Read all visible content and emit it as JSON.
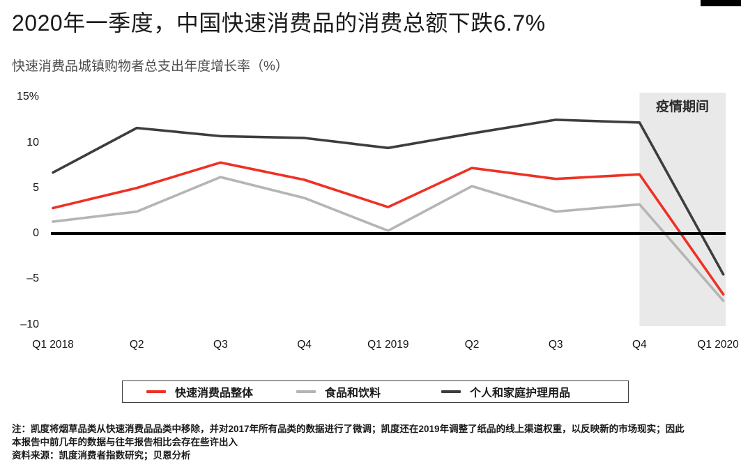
{
  "chart_data": {
    "type": "line",
    "title": "2020年一季度，中国快速消费品的消费总额下跌6.7%",
    "subtitle": "快速消费品城镇购物者总支出年度增长率（%）",
    "categories": [
      "Q1 2018",
      "Q2",
      "Q3",
      "Q4",
      "Q1 2019",
      "Q2",
      "Q3",
      "Q4",
      "Q1 2020"
    ],
    "series": [
      {
        "name": "快速消费品整体",
        "color": "#ee3124",
        "values": [
          2.8,
          5.0,
          7.8,
          5.9,
          2.9,
          7.2,
          6.0,
          6.5,
          -6.7
        ]
      },
      {
        "name": "食品和饮料",
        "color": "#b5b5b5",
        "values": [
          1.3,
          2.4,
          6.2,
          3.9,
          0.3,
          5.2,
          2.4,
          3.2,
          -7.4
        ]
      },
      {
        "name": "个人和家庭护理用品",
        "color": "#3d3d3d",
        "values": [
          6.7,
          11.6,
          10.7,
          10.5,
          9.4,
          11.0,
          12.5,
          12.2,
          -4.5
        ]
      }
    ],
    "ylim": [
      -10,
      15
    ],
    "yticks": [
      {
        "value": 15,
        "label": "15%"
      },
      {
        "value": 10,
        "label": "10"
      },
      {
        "value": 5,
        "label": "5"
      },
      {
        "value": 0,
        "label": "0"
      },
      {
        "value": -5,
        "label": "–5"
      },
      {
        "value": -10,
        "label": "–10"
      }
    ],
    "grid": false,
    "zero_line": true,
    "legend_position": "bottom",
    "annotation": {
      "label": "疫情期间",
      "from_category_index": 7,
      "to": "right-edge",
      "fill": "#e9e9e9"
    }
  },
  "notes": {
    "note_line1": "注：凯度将烟草品类从快速消费品品类中移除，并对2017年所有品类的数据进行了微调；凯度还在2019年调整了纸品的线上渠道权重，以反映新的市场现实；因此",
    "note_line2": "本报告中前几年的数据与往年报告相比会存在些许出入",
    "source": "资料来源：凯度消费者指数研究；贝恩分析"
  }
}
